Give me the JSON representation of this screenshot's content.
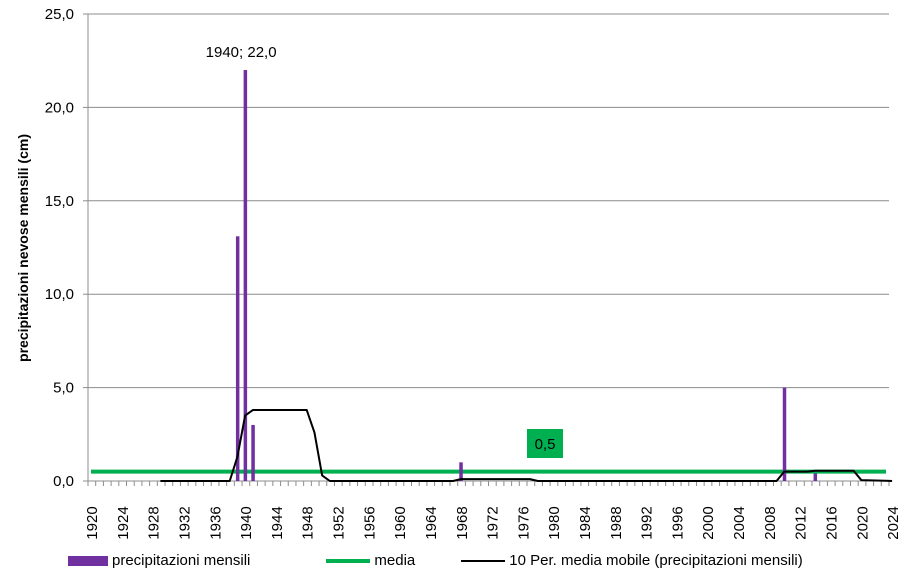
{
  "chart_data": {
    "type": "bar+line",
    "title": "",
    "xlabel": "",
    "ylabel": "precipitazioni nevose mensili (cm)",
    "ylim": [
      0,
      25
    ],
    "yticks": [
      "0,0",
      "5,0",
      "10,0",
      "15,0",
      "20,0",
      "25,0"
    ],
    "grid": true,
    "legend_position": "bottom",
    "x_range": [
      1920,
      2024
    ],
    "xtick_labels": [
      "1920",
      "1924",
      "1928",
      "1932",
      "1936",
      "1940",
      "1944",
      "1948",
      "1952",
      "1956",
      "1960",
      "1964",
      "1968",
      "1972",
      "1976",
      "1980",
      "1984",
      "1988",
      "1992",
      "1996",
      "2000",
      "2004",
      "2008",
      "2012",
      "2016",
      "2020",
      "2024"
    ],
    "series": [
      {
        "name": "precipitazioni mensili",
        "type": "bar",
        "color": "#7030A0",
        "points": [
          {
            "x": 1939,
            "y": 13.1
          },
          {
            "x": 1940,
            "y": 22.0
          },
          {
            "x": 1941,
            "y": 3.0
          },
          {
            "x": 1968,
            "y": 1.0
          },
          {
            "x": 2010,
            "y": 5.0
          },
          {
            "x": 2014,
            "y": 0.4
          }
        ]
      },
      {
        "name": "media",
        "type": "line",
        "color": "#00B050",
        "value": 0.5,
        "x_start": 1920,
        "x_end": 2024
      },
      {
        "name": "10 Per. media mobile (precipitazioni mensili)",
        "type": "line",
        "color": "#000000",
        "points": [
          [
            1929,
            0.0
          ],
          [
            1938,
            0.0
          ],
          [
            1939,
            1.3
          ],
          [
            1940,
            3.5
          ],
          [
            1941,
            3.8
          ],
          [
            1948,
            3.8
          ],
          [
            1949,
            2.6
          ],
          [
            1950,
            0.3
          ],
          [
            1951,
            0.0
          ],
          [
            1967,
            0.0
          ],
          [
            1968,
            0.1
          ],
          [
            1977,
            0.1
          ],
          [
            1978,
            0.0
          ],
          [
            2009,
            0.0
          ],
          [
            2010,
            0.5
          ],
          [
            2013,
            0.5
          ],
          [
            2014,
            0.55
          ],
          [
            2019,
            0.55
          ],
          [
            2020,
            0.05
          ],
          [
            2024,
            0.0
          ]
        ]
      }
    ],
    "annotations": [
      {
        "text": "1940; 22,0",
        "x": 1940,
        "y": 22.0
      },
      {
        "text": "0,5",
        "x": 1979,
        "y": 2.0,
        "background": "#00B050"
      }
    ]
  },
  "legend": {
    "items": [
      {
        "label": "precipitazioni mensili",
        "color": "#7030A0"
      },
      {
        "label": "media",
        "color": "#00B050"
      },
      {
        "label": "10 Per. media mobile (precipitazioni mensili)",
        "color": "#000000"
      }
    ]
  }
}
